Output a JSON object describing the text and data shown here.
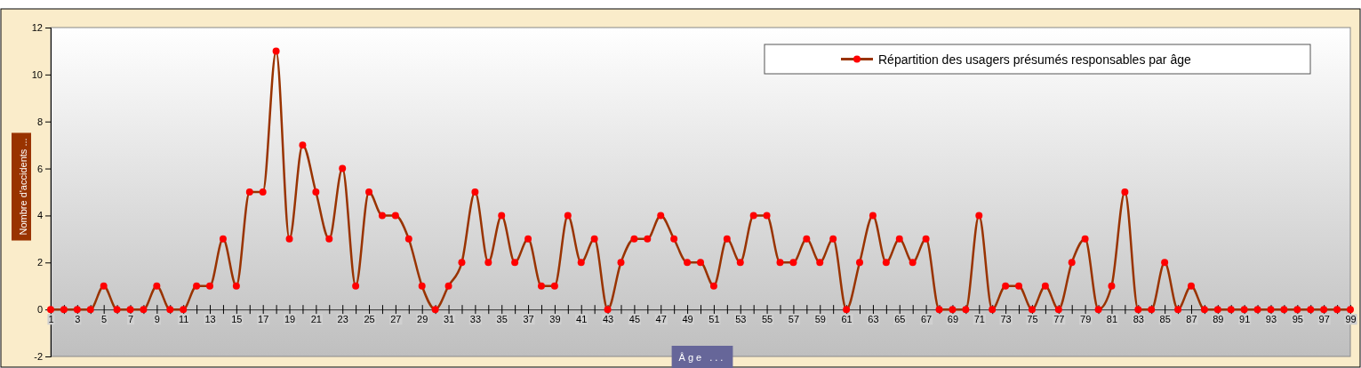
{
  "chart_data": {
    "type": "line",
    "xlabel": "Âge ...",
    "ylabel": "Nombre d'accidents ...",
    "x": [
      1,
      2,
      3,
      4,
      5,
      6,
      7,
      8,
      9,
      10,
      11,
      12,
      13,
      14,
      15,
      16,
      17,
      18,
      19,
      20,
      21,
      22,
      23,
      24,
      25,
      26,
      27,
      28,
      29,
      30,
      31,
      32,
      33,
      34,
      35,
      36,
      37,
      38,
      39,
      40,
      41,
      42,
      43,
      44,
      45,
      46,
      47,
      48,
      49,
      50,
      51,
      52,
      53,
      54,
      55,
      56,
      57,
      58,
      59,
      60,
      61,
      62,
      63,
      64,
      65,
      66,
      67,
      68,
      69,
      70,
      71,
      72,
      73,
      74,
      75,
      76,
      77,
      78,
      79,
      80,
      81,
      82,
      83,
      84,
      85,
      86,
      87,
      88,
      89,
      90,
      91,
      92,
      93,
      94,
      95,
      96,
      97,
      98,
      99
    ],
    "series": [
      {
        "name": "Répartition des usagers présumés responsables par âge",
        "color": "#993300",
        "values": [
          0,
          0,
          0,
          0,
          1,
          0,
          0,
          0,
          1,
          0,
          0,
          1,
          1,
          3,
          1,
          5,
          5,
          11,
          3,
          7,
          5,
          3,
          6,
          1,
          5,
          4,
          4,
          3,
          1,
          0,
          1,
          2,
          5,
          2,
          4,
          2,
          3,
          1,
          1,
          4,
          2,
          3,
          0,
          2,
          3,
          3,
          4,
          3,
          2,
          2,
          1,
          3,
          2,
          4,
          4,
          2,
          2,
          3,
          2,
          3,
          0,
          2,
          4,
          2,
          3,
          2,
          3,
          0,
          0,
          0,
          4,
          0,
          1,
          1,
          0,
          1,
          0,
          2,
          3,
          0,
          1,
          5,
          0,
          0,
          2,
          0,
          1,
          0,
          0,
          0,
          0,
          0,
          0,
          0,
          0,
          0,
          0,
          0,
          0
        ]
      }
    ],
    "xlim": [
      1,
      99
    ],
    "xticks": [
      1,
      {
        "value": 2,
        "label": null
      },
      3,
      {
        "value": 4,
        "label": null
      },
      5,
      {
        "value": 6,
        "label": null
      },
      7,
      {
        "value": 8,
        "label": null
      },
      9,
      {
        "value": 10,
        "label": null
      },
      11,
      {
        "value": 12,
        "label": null
      },
      13,
      {
        "value": 14,
        "label": null
      },
      15,
      {
        "value": 16,
        "label": null
      },
      17,
      {
        "value": 18,
        "label": null
      },
      19,
      {
        "value": 20,
        "label": null
      },
      21,
      {
        "value": 22,
        "label": null
      },
      23,
      {
        "value": 24,
        "label": null
      },
      25,
      {
        "value": 26,
        "label": null
      },
      27,
      {
        "value": 28,
        "label": null
      },
      29,
      {
        "value": 30,
        "label": null
      },
      31,
      {
        "value": 32,
        "label": null
      },
      33,
      {
        "value": 34,
        "label": null
      },
      35,
      {
        "value": 36,
        "label": null
      },
      37,
      {
        "value": 38,
        "label": null
      },
      39,
      {
        "value": 40,
        "label": null
      },
      41,
      {
        "value": 42,
        "label": null
      },
      43,
      {
        "value": 44,
        "label": null
      },
      45,
      {
        "value": 46,
        "label": null
      },
      47,
      {
        "value": 48,
        "label": null
      },
      49,
      {
        "value": 50,
        "label": null
      },
      51,
      {
        "value": 52,
        "label": null
      },
      53,
      {
        "value": 54,
        "label": null
      },
      55,
      {
        "value": 56,
        "label": null
      },
      57,
      {
        "value": 58,
        "label": null
      },
      59,
      {
        "value": 60,
        "label": null
      },
      61,
      {
        "value": 62,
        "label": null
      },
      63,
      {
        "value": 64,
        "label": null
      },
      65,
      {
        "value": 66,
        "label": null
      },
      67,
      {
        "value": 68,
        "label": null
      },
      69,
      {
        "value": 70,
        "label": null
      },
      71,
      {
        "value": 72,
        "label": null
      },
      73,
      {
        "value": 74,
        "label": null
      },
      75,
      {
        "value": 76,
        "label": null
      },
      77,
      {
        "value": 78,
        "label": null
      },
      79,
      {
        "value": 80,
        "label": null
      },
      81,
      {
        "value": 82,
        "label": null
      },
      83,
      {
        "value": 84,
        "label": null
      },
      85,
      {
        "value": 86,
        "label": null
      },
      87,
      {
        "value": 88,
        "label": null
      },
      89,
      {
        "value": 90,
        "label": null
      },
      91,
      {
        "value": 92,
        "label": null
      },
      93,
      {
        "value": 94,
        "label": null
      },
      95,
      {
        "value": 96,
        "label": null
      },
      97,
      {
        "value": 98,
        "label": null
      },
      99
    ],
    "ylim": [
      -2,
      12
    ],
    "yticks": [
      -2,
      0,
      2,
      4,
      6,
      8,
      10,
      12
    ],
    "legend": "top right",
    "marker": "circle",
    "line_style": "solid"
  }
}
